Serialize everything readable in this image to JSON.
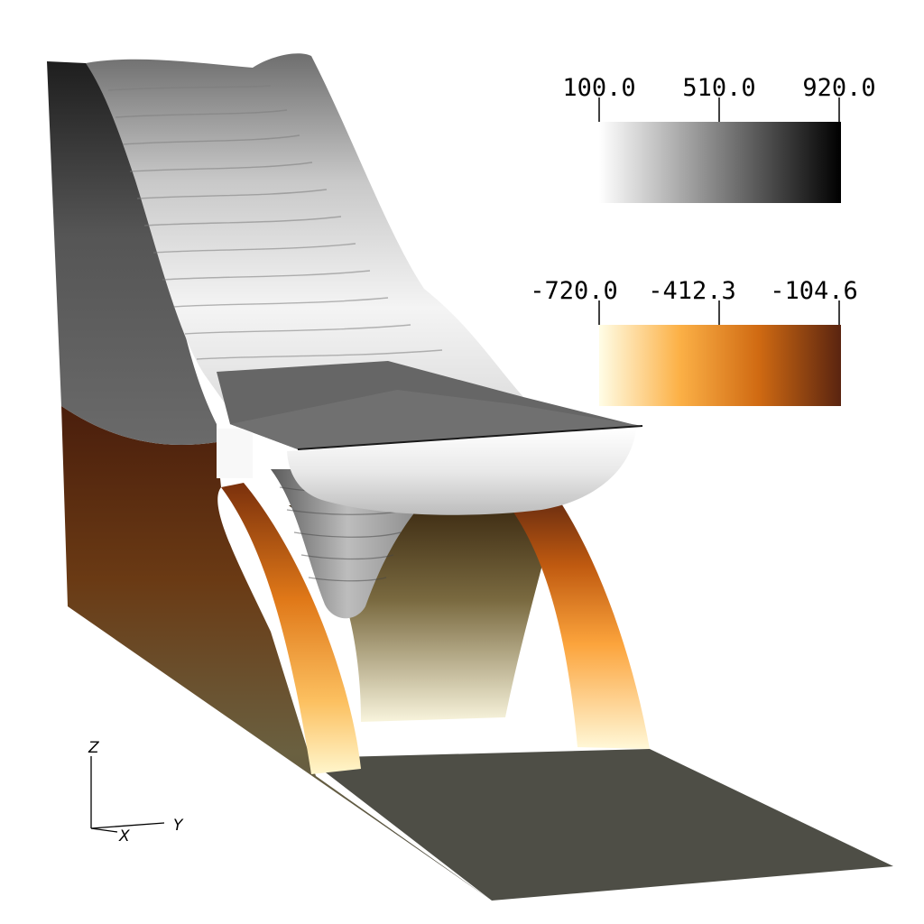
{
  "colorbars": [
    {
      "name": "grayscale",
      "ticks": [
        "100.0",
        "510.0",
        "920.0"
      ],
      "colors": [
        "#ffffff",
        "#808080",
        "#000000"
      ]
    },
    {
      "name": "heat",
      "ticks": [
        "-720.0",
        "-412.3",
        "-104.6"
      ],
      "colors": [
        "#fffde6",
        "#fcb147",
        "#d06a12",
        "#5a2410"
      ]
    }
  ],
  "axes": {
    "z": "Z",
    "x": "X",
    "y": "Y"
  },
  "surface_colors": {
    "ground": "#4e4e46",
    "gray_wall": "#6a6a6a",
    "dark_top": "#222222",
    "light_band": "#f4f4f4"
  }
}
